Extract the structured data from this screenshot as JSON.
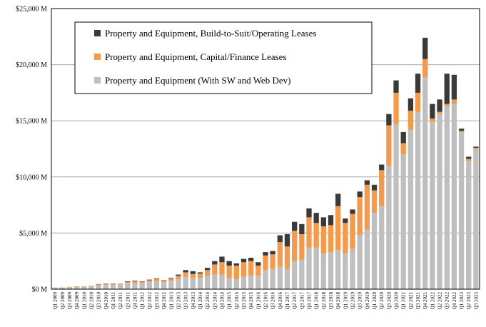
{
  "chart_data": {
    "type": "stacked_bar",
    "categories": [
      "Q1 2009",
      "Q2 2009",
      "Q3 2009",
      "Q4 2009",
      "Q1 2010",
      "Q2 2010",
      "Q3 2010",
      "Q4 2010",
      "Q1 2011",
      "Q2 2011",
      "Q3 2011",
      "Q4 2011",
      "Q1 2012",
      "Q2 2012",
      "Q3 2012",
      "Q4 2012",
      "Q1 2013",
      "Q2 2013",
      "Q3 2013",
      "Q4 2013",
      "Q1 2014",
      "Q2 2014",
      "Q3 2014",
      "Q4 2014",
      "Q1 2015",
      "Q2 2015",
      "Q3 2015",
      "Q4 2015",
      "Q1 2016",
      "Q2 2016",
      "Q3 2016",
      "Q4 2016",
      "Q1 2017",
      "Q2 2017",
      "Q3 2017",
      "Q4 2017",
      "Q1 2018",
      "Q2 2018",
      "Q3 2018",
      "Q4 2018",
      "Q1 2019",
      "Q2 2019",
      "Q3 2019",
      "Q4 2019",
      "Q1 2020",
      "Q2 2020",
      "Q3 2020",
      "Q4 2020",
      "Q1 2021",
      "Q2 2021",
      "Q3 2021",
      "Q4 2021",
      "Q1 2022",
      "Q2 2022",
      "Q3 2022",
      "Q4 2022",
      "Q1 2023",
      "Q2 2023",
      "Q3 2023"
    ],
    "series": [
      {
        "name": "Property and Equipment (With SW and Web Dev)",
        "color": "#bfbfbf",
        "values": [
          130,
          130,
          170,
          200,
          220,
          250,
          330,
          380,
          380,
          420,
          530,
          570,
          550,
          650,
          720,
          620,
          750,
          900,
          1100,
          1000,
          1000,
          1200,
          1300,
          1300,
          1000,
          900,
          1100,
          1200,
          1200,
          1700,
          1800,
          2000,
          1800,
          2500,
          2600,
          3700,
          3700,
          3200,
          3300,
          3500,
          3200,
          3600,
          4800,
          5300,
          6800,
          7400,
          11000,
          14700,
          12000,
          14200,
          15800,
          18900,
          14900,
          15600,
          16300,
          16500,
          14000,
          11400,
          12500
        ]
      },
      {
        "name": "Property and Equipment, Capital/Finance Leases",
        "color": "#f39a4c",
        "values": [
          20,
          20,
          30,
          50,
          30,
          50,
          100,
          100,
          100,
          80,
          120,
          130,
          120,
          150,
          180,
          150,
          200,
          300,
          400,
          350,
          400,
          500,
          900,
          1100,
          1100,
          1200,
          1300,
          1300,
          900,
          1300,
          1300,
          2200,
          2000,
          2700,
          2300,
          2700,
          2200,
          2400,
          2400,
          3900,
          2700,
          3100,
          3400,
          4000,
          2000,
          3200,
          3600,
          2800,
          1000,
          1700,
          1700,
          1600,
          300,
          200,
          200,
          400,
          100,
          200,
          100
        ]
      },
      {
        "name": "Property and Equipment, Build-to-Suit/Operating Leases",
        "color": "#3a3a3a",
        "values": [
          0,
          0,
          0,
          0,
          0,
          0,
          20,
          20,
          20,
          0,
          50,
          50,
          30,
          50,
          50,
          30,
          50,
          100,
          200,
          250,
          100,
          200,
          300,
          500,
          400,
          200,
          300,
          300,
          300,
          300,
          300,
          600,
          1100,
          800,
          900,
          800,
          900,
          800,
          900,
          1100,
          400,
          400,
          500,
          400,
          500,
          500,
          1000,
          1100,
          1000,
          1100,
          1700,
          1900,
          1300,
          1100,
          2700,
          2200,
          200,
          200,
          100
        ]
      }
    ],
    "ylim": [
      0,
      25000
    ],
    "yticks": [
      {
        "value": 0,
        "label": "$0 M"
      },
      {
        "value": 5000,
        "label": "$5,000 M"
      },
      {
        "value": 10000,
        "label": "$10,000 M"
      },
      {
        "value": 15000,
        "label": "$15,000 M"
      },
      {
        "value": 20000,
        "label": "$20,000 M"
      },
      {
        "value": 25000,
        "label": "$25,000 M"
      }
    ],
    "grid": true,
    "legend": "upper left"
  }
}
